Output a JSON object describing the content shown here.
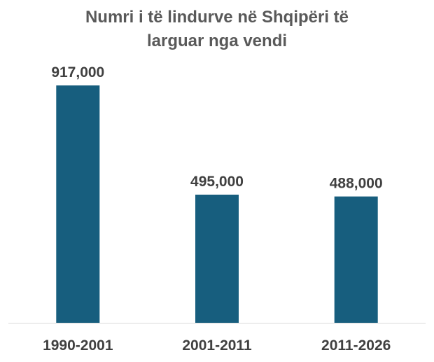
{
  "chart_data": {
    "type": "bar",
    "title_lines": [
      "Numri i të lindurve në Shqipëri të",
      "larguar nga vendi"
    ],
    "categories": [
      "1990-2001",
      "2001-2011",
      "2011-2026"
    ],
    "values": [
      917000,
      495000,
      488000
    ],
    "data_labels": [
      "917,000",
      "495,000",
      "488,000"
    ],
    "xlabel": "",
    "ylabel": "",
    "ylim": [
      0,
      917000
    ],
    "grid": false,
    "legend": "none",
    "colors": {
      "bar": "#175E7E",
      "axis": "#D9D9D9",
      "title": "#595959",
      "labels": "#404040"
    }
  }
}
